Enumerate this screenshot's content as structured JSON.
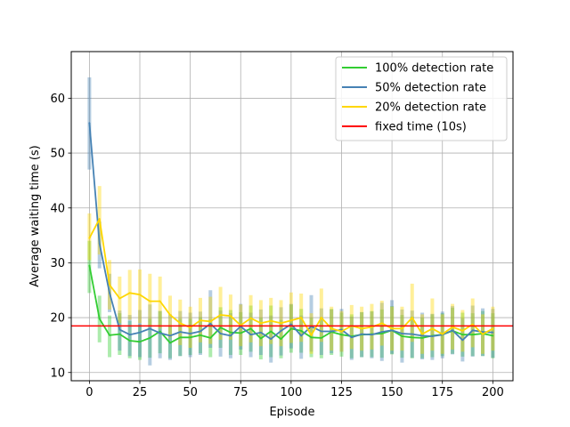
{
  "chart_data": {
    "type": "line",
    "xlabel": "Episode",
    "ylabel": "Average waiting time (s)",
    "xlim": [
      -9,
      210
    ],
    "ylim": [
      8.5,
      68.5
    ],
    "xticks": [
      0,
      25,
      50,
      75,
      100,
      125,
      150,
      175,
      200
    ],
    "yticks": [
      10,
      20,
      30,
      40,
      50,
      60
    ],
    "grid": true,
    "legend_position": "top-right",
    "x": [
      0,
      5,
      10,
      15,
      20,
      25,
      30,
      35,
      40,
      45,
      50,
      55,
      60,
      65,
      70,
      75,
      80,
      85,
      90,
      95,
      100,
      105,
      110,
      115,
      120,
      125,
      130,
      135,
      140,
      145,
      150,
      155,
      160,
      165,
      170,
      175,
      180,
      185,
      190,
      195,
      200
    ],
    "series": [
      {
        "name": "100% detection rate",
        "color": "#32cd32",
        "values": [
          29.5,
          19.8,
          16.8,
          17.0,
          15.8,
          15.6,
          16.3,
          17.5,
          15.4,
          16.4,
          16.4,
          16.8,
          16.3,
          18.2,
          17.3,
          17.2,
          18.0,
          16.2,
          17.5,
          16.1,
          18.0,
          17.6,
          16.4,
          16.3,
          17.4,
          16.9,
          16.6,
          16.9,
          17.0,
          17.1,
          17.7,
          16.6,
          16.4,
          16.3,
          16.7,
          16.9,
          17.6,
          16.9,
          16.9,
          17.1,
          16.7
        ],
        "error_low": [
          24.5,
          15.5,
          12.8,
          13.2,
          12.6,
          12.3,
          12.7,
          13.5,
          12.6,
          13.0,
          13.2,
          13.5,
          12.8,
          14.5,
          13.2,
          13.2,
          13.8,
          12.4,
          12.8,
          12.6,
          13.6,
          13.6,
          12.8,
          12.6,
          13.2,
          12.9,
          12.6,
          12.8,
          12.8,
          12.7,
          13.3,
          12.7,
          12.6,
          12.6,
          12.8,
          13.0,
          13.4,
          12.9,
          13.0,
          13.0,
          12.6
        ],
        "error_high": [
          34.0,
          24.0,
          20.4,
          20.8,
          19.4,
          18.8,
          19.8,
          21.2,
          18.6,
          19.8,
          19.8,
          20.1,
          19.7,
          21.9,
          21.4,
          21.0,
          22.2,
          20.0,
          22.2,
          19.6,
          22.4,
          21.6,
          20.0,
          20.0,
          21.6,
          20.9,
          20.6,
          21.0,
          21.2,
          21.5,
          22.1,
          20.5,
          20.2,
          20.0,
          20.6,
          20.8,
          21.8,
          20.9,
          20.8,
          21.2,
          20.8
        ]
      },
      {
        "name": "50% detection rate",
        "color": "#4682b4",
        "values": [
          55.5,
          33.5,
          24.5,
          17.8,
          16.9,
          17.3,
          18.0,
          17.2,
          16.7,
          17.4,
          17.1,
          17.5,
          18.9,
          17.1,
          16.7,
          18.4,
          16.9,
          17.3,
          16.1,
          17.6,
          18.8,
          16.7,
          18.4,
          17.5,
          17.5,
          17.8,
          16.4,
          17.0,
          16.9,
          17.4,
          17.7,
          17.1,
          17.0,
          16.7,
          16.6,
          16.9,
          17.7,
          15.9,
          17.7,
          17.4,
          17.3
        ],
        "error_low": [
          47.0,
          29.0,
          21.0,
          14.0,
          13.0,
          12.8,
          11.3,
          12.6,
          12.3,
          13.0,
          12.8,
          13.2,
          14.5,
          12.9,
          12.6,
          14.2,
          12.8,
          13.2,
          11.8,
          13.1,
          14.4,
          12.5,
          13.8,
          13.2,
          13.5,
          13.8,
          12.3,
          12.8,
          12.6,
          12.1,
          13.4,
          11.8,
          12.7,
          12.4,
          12.3,
          12.6,
          13.3,
          12.0,
          12.9,
          13.0,
          12.7
        ],
        "error_high": [
          63.8,
          37.5,
          28.0,
          21.3,
          20.5,
          21.4,
          22.4,
          21.2,
          20.6,
          21.2,
          20.9,
          21.1,
          25.0,
          21.3,
          20.8,
          22.5,
          20.9,
          21.5,
          20.4,
          21.9,
          22.5,
          20.4,
          24.1,
          21.7,
          21.5,
          21.6,
          20.2,
          21.0,
          21.1,
          22.7,
          23.2,
          21.5,
          21.3,
          20.9,
          20.7,
          21.1,
          22.1,
          19.9,
          22.2,
          21.7,
          21.6
        ]
      },
      {
        "name": "20% detection rate",
        "color": "#ffd700",
        "values": [
          34.5,
          38.0,
          26.0,
          23.5,
          24.5,
          24.2,
          23.0,
          23.0,
          20.5,
          19.0,
          18.2,
          19.5,
          19.3,
          20.5,
          20.3,
          18.6,
          19.9,
          19.0,
          19.4,
          19.0,
          19.5,
          20.0,
          16.8,
          20.0,
          18.0,
          17.5,
          18.5,
          18.0,
          18.3,
          19.0,
          18.0,
          18.0,
          20.0,
          17.0,
          18.0,
          17.0,
          18.3,
          17.6,
          18.8,
          17.0,
          18.0
        ],
        "error_low": [
          30.5,
          31.5,
          21.5,
          19.0,
          19.6,
          19.0,
          18.5,
          18.0,
          16.4,
          15.0,
          14.5,
          15.5,
          15.2,
          16.0,
          16.0,
          14.8,
          15.5,
          14.8,
          15.2,
          14.8,
          15.4,
          15.6,
          13.4,
          15.6,
          14.0,
          13.8,
          14.3,
          14.0,
          14.2,
          14.9,
          14.0,
          14.0,
          15.6,
          13.4,
          14.0,
          13.4,
          14.2,
          13.8,
          14.6,
          13.4,
          14.0
        ],
        "error_high": [
          39.0,
          44.0,
          30.5,
          27.5,
          28.7,
          28.8,
          28.0,
          27.5,
          24.0,
          23.3,
          22.0,
          23.6,
          23.8,
          25.6,
          24.2,
          22.4,
          24.1,
          23.2,
          23.6,
          23.2,
          24.6,
          24.4,
          20.8,
          25.3,
          22.0,
          21.2,
          22.3,
          22.0,
          22.5,
          23.1,
          22.0,
          22.0,
          26.2,
          20.6,
          23.5,
          20.6,
          22.5,
          21.4,
          23.5,
          20.6,
          22.0
        ]
      },
      {
        "name": "fixed time (10s)",
        "color": "#ff0000",
        "type": "hline",
        "value": 18.5
      }
    ]
  }
}
